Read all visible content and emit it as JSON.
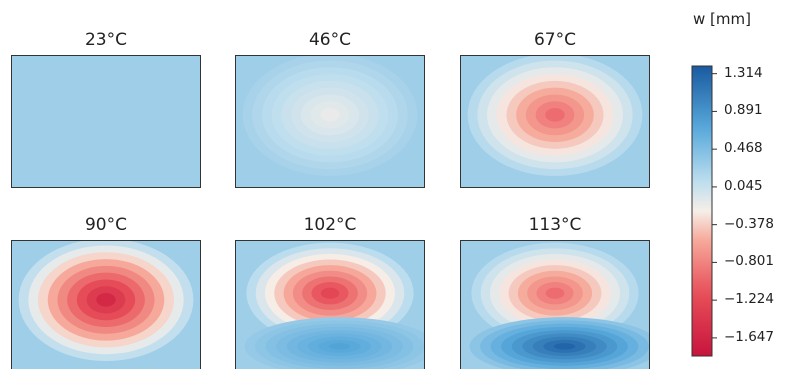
{
  "chart_data": {
    "type": "heatmap",
    "variable_label": "w [mm]",
    "colorbar": {
      "ticks": [
        "1.314",
        "0.891",
        "0.468",
        "0.045",
        "−0.378",
        "−0.801",
        "−1.224",
        "−1.647"
      ],
      "tick_values": [
        1.314,
        0.891,
        0.468,
        0.045,
        -0.378,
        -0.801,
        -1.224,
        -1.647
      ],
      "min": -1.85,
      "max": 1.4,
      "colormap": "RdBu"
    },
    "panels": [
      {
        "title": "23°C",
        "temperature": 23,
        "upper_lobe_peak": 0.25,
        "lower_lobe_peak": 0.0
      },
      {
        "title": "46°C",
        "temperature": 46,
        "upper_lobe_peak": -0.15,
        "lower_lobe_peak": 0.0
      },
      {
        "title": "67°C",
        "temperature": 67,
        "upper_lobe_peak": -0.95,
        "lower_lobe_peak": 0.0
      },
      {
        "title": "90°C",
        "temperature": 90,
        "upper_lobe_peak": -1.6,
        "lower_lobe_peak": 0.0
      },
      {
        "title": "102°C",
        "temperature": 102,
        "upper_lobe_peak": -1.25,
        "lower_lobe_peak": 0.75
      },
      {
        "title": "113°C",
        "temperature": 113,
        "upper_lobe_peak": -0.95,
        "lower_lobe_peak": 1.3
      }
    ]
  }
}
